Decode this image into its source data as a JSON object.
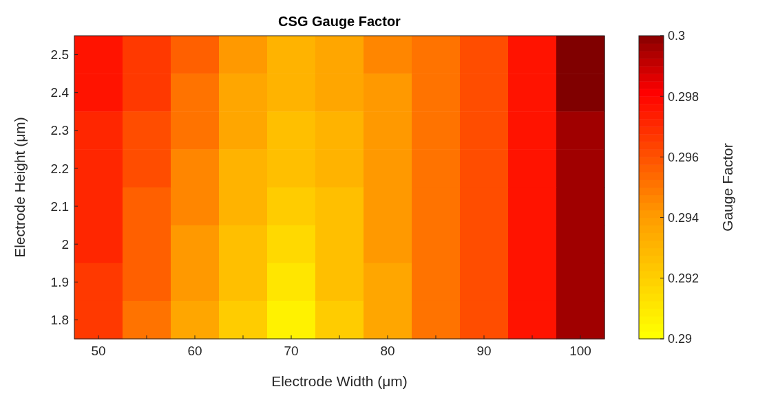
{
  "chart_data": {
    "type": "heatmap",
    "title": "CSG Gauge Factor",
    "xlabel": "Electrode Width (μm)",
    "ylabel": "Electrode Height (μm)",
    "clabel": "Gauge Factor",
    "categories": [
      "50",
      null,
      "60",
      null,
      "70",
      null,
      "80",
      null,
      "90",
      null,
      "100"
    ],
    "y_categories": [
      "2.5",
      "2.4",
      "2.3",
      "2.2",
      "2.1",
      "2",
      "1.9",
      "1.8"
    ],
    "cells": [
      [
        0.2975,
        0.2965,
        0.2955,
        0.294,
        0.293,
        0.2935,
        0.2945,
        0.295,
        0.296,
        0.2975,
        0.3
      ],
      [
        0.2975,
        0.2965,
        0.295,
        0.2935,
        0.293,
        0.2935,
        0.294,
        0.295,
        0.296,
        0.2975,
        0.3
      ],
      [
        0.297,
        0.296,
        0.295,
        0.2935,
        0.2925,
        0.293,
        0.294,
        0.295,
        0.296,
        0.2975,
        0.2995
      ],
      [
        0.297,
        0.296,
        0.2945,
        0.293,
        0.2925,
        0.293,
        0.294,
        0.295,
        0.296,
        0.2975,
        0.2995
      ],
      [
        0.297,
        0.2955,
        0.2945,
        0.293,
        0.292,
        0.2925,
        0.294,
        0.295,
        0.296,
        0.2975,
        0.2995
      ],
      [
        0.297,
        0.2955,
        0.294,
        0.2925,
        0.2915,
        0.2925,
        0.294,
        0.295,
        0.296,
        0.2975,
        0.2995
      ],
      [
        0.2965,
        0.2955,
        0.294,
        0.2925,
        0.291,
        0.2925,
        0.2935,
        0.295,
        0.296,
        0.2975,
        0.2995
      ],
      [
        0.2965,
        0.295,
        0.2935,
        0.292,
        0.2905,
        0.292,
        0.2935,
        0.295,
        0.296,
        0.2975,
        0.2995
      ]
    ],
    "clim": [
      0.29,
      0.3
    ],
    "cticks": [
      0.29,
      0.292,
      0.294,
      0.296,
      0.298,
      0.3
    ]
  }
}
